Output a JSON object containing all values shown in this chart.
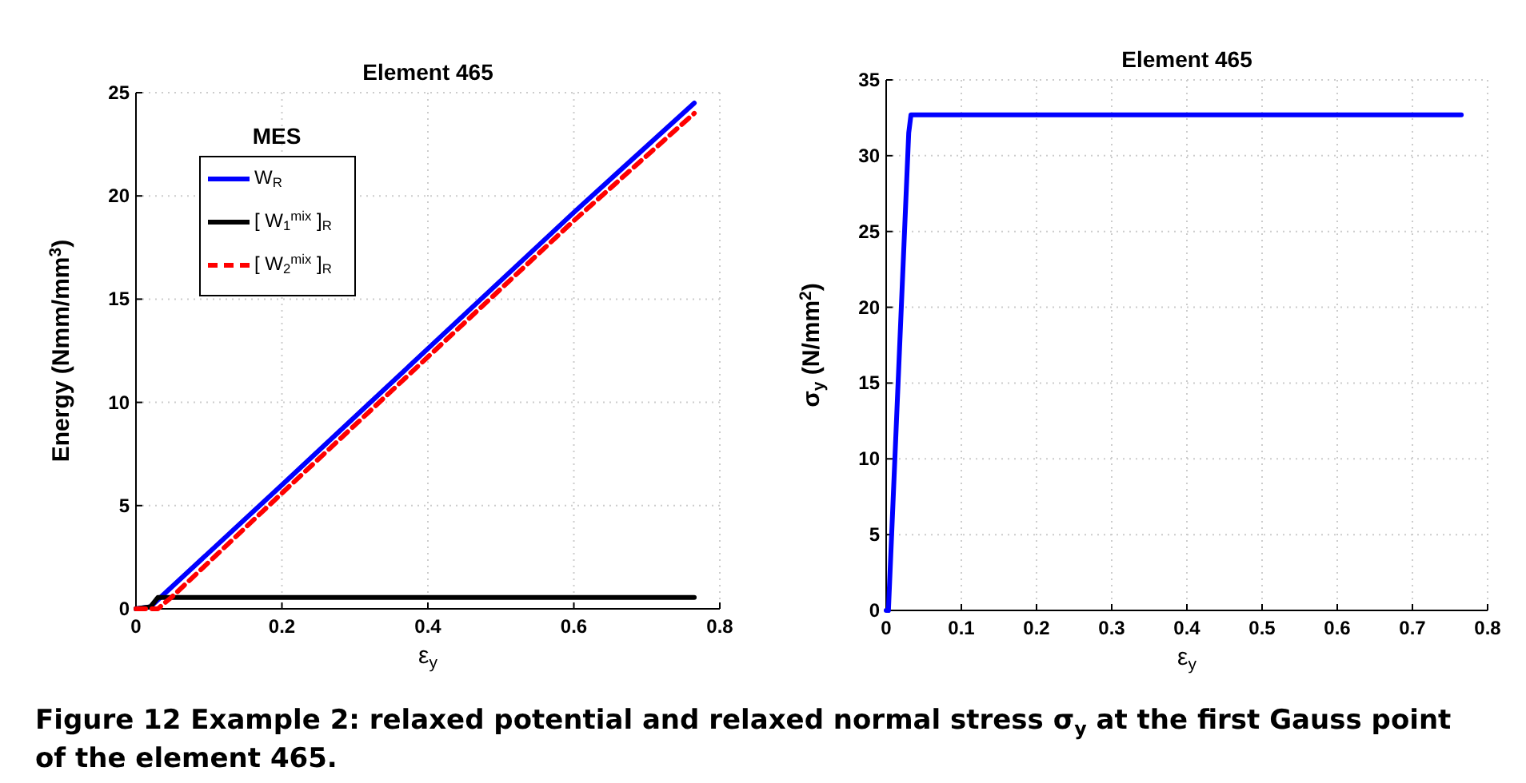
{
  "chart_data": [
    {
      "type": "line",
      "title": "Element 465",
      "xlabel": "ε$_{y}$",
      "ylabel": "Energy (Nmm/mm$^{3}$)",
      "xlim": [
        0,
        0.8
      ],
      "xticks": [
        0,
        0.2,
        0.4,
        0.6,
        0.8
      ],
      "ylim": [
        0,
        25
      ],
      "yticks": [
        0,
        5,
        10,
        15,
        20,
        25
      ],
      "grid": true,
      "legend": "top left",
      "legend_title": "MES",
      "annotations": [
        "Figure 12 Example 2: relaxed potential and relaxed normal stress σ$_{y}$ at the first Gauss point of the element 465."
      ],
      "series": [
        {
          "name": "W$_{R}$",
          "color": "#0000ff",
          "line_style": "solid",
          "x": [
            0,
            0.02,
            0.035,
            0.2,
            0.4,
            0.6,
            0.765
          ],
          "values": [
            0,
            0.1,
            0.6,
            6.0,
            12.6,
            19.2,
            24.5
          ]
        },
        {
          "name": "[ W$_{1}$$^{mix}$ ]$_{R}$",
          "color": "#000000",
          "line_style": "solid",
          "x": [
            0,
            0.02,
            0.03,
            0.765
          ],
          "values": [
            0,
            0.1,
            0.55,
            0.55
          ]
        },
        {
          "name": "[ W$_{2}$$^{mix}$ ]$_{R}$",
          "color": "#ff0000",
          "line_style": "dashed",
          "x": [
            0,
            0.03,
            0.05,
            0.2,
            0.4,
            0.6,
            0.765
          ],
          "values": [
            0,
            0,
            0.6,
            5.6,
            12.2,
            18.8,
            24.0
          ]
        }
      ]
    },
    {
      "type": "line",
      "title": "Element 465",
      "xlabel": "ε$_{y}$",
      "ylabel": "σ$_{y}$  (N/mm$^{2}$)",
      "xlim": [
        0,
        0.8
      ],
      "xticks": [
        0,
        0.1,
        0.2,
        0.3,
        0.4,
        0.5,
        0.6,
        0.7,
        0.8
      ],
      "ylim": [
        0,
        35
      ],
      "yticks": [
        0,
        5,
        10,
        15,
        20,
        25,
        30,
        35
      ],
      "grid": true,
      "series": [
        {
          "color": "#0000ff",
          "line_style": "solid",
          "x": [
            0,
            0.003,
            0.03,
            0.033,
            0.765
          ],
          "values": [
            0,
            0,
            31.5,
            32.7,
            32.7
          ]
        }
      ]
    }
  ]
}
